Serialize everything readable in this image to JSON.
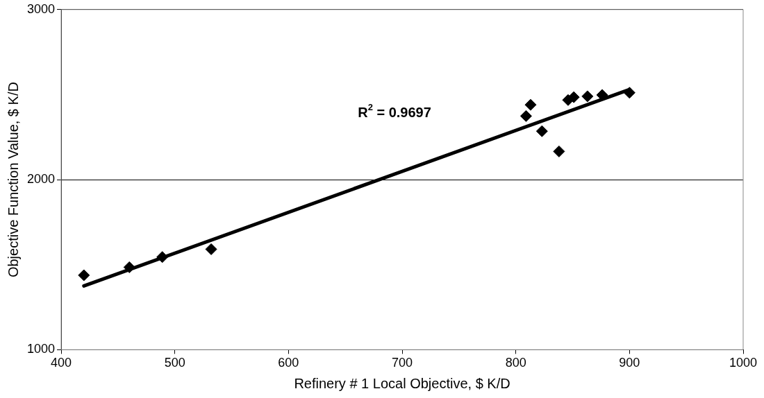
{
  "chart_data": {
    "type": "scatter",
    "xlabel": "Refinery # 1 Local Objective, $ K/D",
    "ylabel": "Objective Function Value, $ K/D",
    "xlim": [
      400,
      1000
    ],
    "xticks": [
      400,
      500,
      600,
      700,
      800,
      900,
      1000
    ],
    "ylim": [
      1000,
      3000
    ],
    "yticks": [
      1000,
      2000,
      3000
    ],
    "grid": "y",
    "legend": false,
    "marker": "diamond",
    "series": [
      {
        "color": "#000000",
        "x": [
          420,
          460,
          489,
          532,
          809,
          813,
          823,
          838,
          846,
          851,
          863,
          876,
          900
        ],
        "values": [
          1438,
          1485,
          1545,
          1591,
          2374,
          2440,
          2285,
          2166,
          2468,
          2485,
          2490,
          2498,
          2511
        ]
      },
      {
        "type": "line",
        "color": "#000000",
        "marker": "none",
        "x": [
          420,
          900
        ],
        "values": [
          1375,
          2530
        ]
      }
    ],
    "annotations": [
      "R$^{2}$ = 0.9697"
    ]
  }
}
